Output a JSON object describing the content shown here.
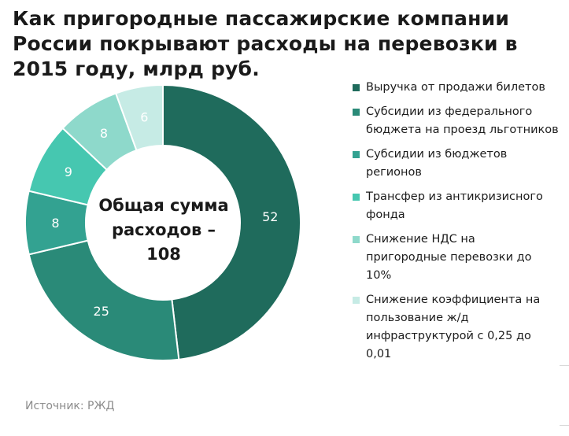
{
  "title": "Как пригородные пассажирские компании России покрывают расходы на перевозки в 2015 году, млрд руб.",
  "center_label": {
    "line1": "Общая сумма",
    "line2": "расходов –",
    "line3": "108"
  },
  "source": "Источник: РЖД",
  "chart_data": {
    "type": "pie",
    "donut": true,
    "title": "Как пригородные пассажирские компании России покрывают расходы на перевозки в 2015 году, млрд руб.",
    "legend_position": "right",
    "slices": [
      {
        "label": "Выручка от продажи билетов",
        "value": 52,
        "color": "#1f6b5c"
      },
      {
        "label": "Субсидии из федерального бюджета на проезд льготников",
        "value": 25,
        "color": "#2a8a78"
      },
      {
        "label": "Субсидии из бюджетов регионов",
        "value": 8,
        "color": "#33a291"
      },
      {
        "label": "Трансфер из антикризисного фонда",
        "value": 9,
        "color": "#46c7b0"
      },
      {
        "label": "Снижение НДС на пригородные перевозки до 10%",
        "value": 8,
        "color": "#8ed9cb"
      },
      {
        "label": "Снижение коэффициента на пользование ж/д инфраструктурой с 0,25 до 0,01",
        "value": 6,
        "color": "#c6ebe5"
      }
    ]
  }
}
